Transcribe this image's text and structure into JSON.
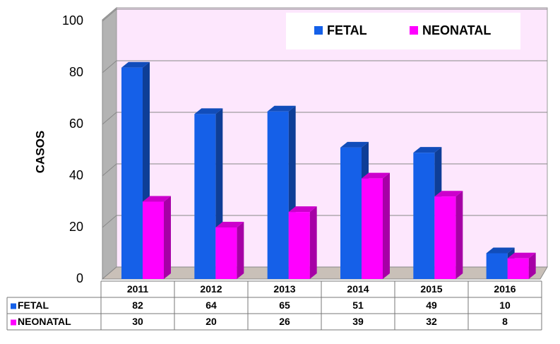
{
  "chart_data": {
    "type": "bar3d",
    "y_axis_label": "CASOS",
    "categories": [
      "2011",
      "2012",
      "2013",
      "2014",
      "2015",
      "2016"
    ],
    "series": [
      {
        "name": "FETAL",
        "color": "#1560e8",
        "values": [
          82,
          64,
          65,
          51,
          49,
          10
        ]
      },
      {
        "name": "NEONATAL",
        "color": "#ff00ff",
        "values": [
          30,
          20,
          26,
          39,
          32,
          8
        ]
      }
    ],
    "ylim": [
      0,
      100
    ],
    "yticks": [
      0,
      20,
      40,
      60,
      80,
      100
    ],
    "grid": true,
    "legend": "top-right",
    "data_table": true
  }
}
